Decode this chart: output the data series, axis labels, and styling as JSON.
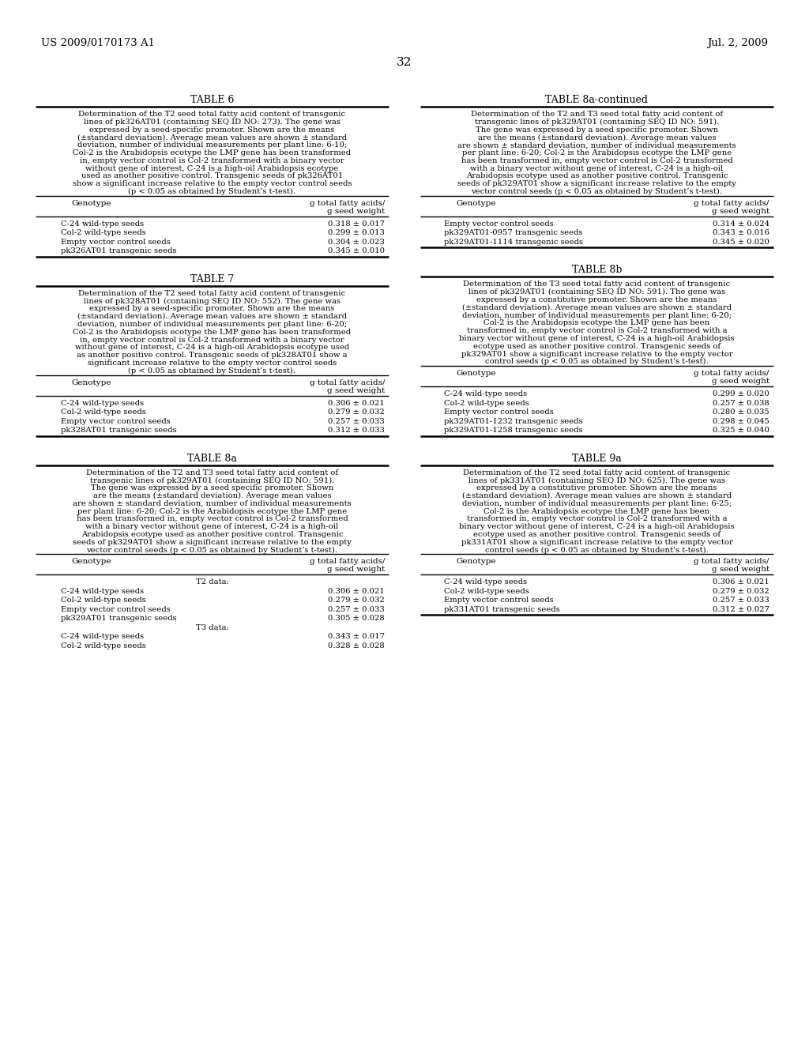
{
  "page_header_left": "US 2009/0170173 A1",
  "page_header_right": "Jul. 2, 2009",
  "page_number": "32",
  "bg_color": "#ffffff",
  "text_color": "#000000",
  "tables": [
    {
      "title": "TABLE 6",
      "col": "left",
      "description": "Determination of the T2 seed total fatty acid content of transgenic\nlines of pk326AT01 (containing SEQ ID NO: 273). The gene was\nexpressed by a seed-specific promoter. Shown are the means\n(±standard deviation). Average mean values are shown ± standard\ndeviation, number of individual measurements per plant line: 6-10;\nCol-2 is the Arabidopsis ecotype the LMP gene has been transformed\nin, empty vector control is Col-2 transformed with a binary vector\nwithout gene of interest, C-24 is a high-oil Arabidopsis ecotype\nused as another positive control. Transgenic seeds of pk326AT01\nshow a significant increase relative to the empty vector control seeds\n(p < 0.05 as obtained by Student’s t-test).",
      "col_headers": [
        "Genotype",
        "g total fatty acids/\ng seed weight"
      ],
      "rows": [
        [
          "C-24 wild-type seeds",
          "0.318 ± 0.017"
        ],
        [
          "Col-2 wild-type seeds",
          "0.299 ± 0.013"
        ],
        [
          "Empty vector control seeds",
          "0.304 ± 0.023"
        ],
        [
          "pk326AT01 transgenic seeds",
          "0.345 ± 0.010"
        ]
      ]
    },
    {
      "title": "TABLE 7",
      "col": "left",
      "description": "Determination of the T2 seed total fatty acid content of transgenic\nlines of pk328AT01 (containing SEQ ID NO: 552). The gene was\nexpressed by a seed-specific promoter. Shown are the means\n(±standard deviation). Average mean values are shown ± standard\ndeviation, number of individual measurements per plant line: 6-20;\nCol-2 is the Arabidopsis ecotype the LMP gene has been transformed\nin, empty vector control is Col-2 transformed with a binary vector\nwithout gene of interest, C-24 is a high-oil Arabidopsis ecotype used\nas another positive control. Transgenic seeds of pk328AT01 show a\nsignificant increase relative to the empty vector control seeds\n(p < 0.05 as obtained by Student’s t-test).",
      "col_headers": [
        "Genotype",
        "g total fatty acids/\ng seed weight"
      ],
      "rows": [
        [
          "C-24 wild-type seeds",
          "0.306 ± 0.021"
        ],
        [
          "Col-2 wild-type seeds",
          "0.279 ± 0.032"
        ],
        [
          "Empty vector control seeds",
          "0.257 ± 0.033"
        ],
        [
          "pk328AT01 transgenic seeds",
          "0.312 ± 0.033"
        ]
      ]
    },
    {
      "title": "TABLE 8a",
      "col": "left",
      "description": "Determination of the T2 and T3 seed total fatty acid content of\ntransgenic lines of pk329AT01 (containing SEQ ID NO: 591).\nThe gene was expressed by a seed specific promoter. Shown\nare the means (±standard deviation). Average mean values\nare shown ± standard deviation, number of individual measurements\nper plant line: 6-20; Col-2 is the Arabidopsis ecotype the LMP gene\nhas been transformed in, empty vector control is Col-2 transformed\nwith a binary vector without gene of interest, C-24 is a high-oil\nArabidopsis ecotype used as another positive control. Transgenic\nseeds of pk329AT01 show a significant increase relative to the empty\nvector control seeds (p < 0.05 as obtained by Student’s t-test).",
      "col_headers": [
        "Genotype",
        "g total fatty acids/\ng seed weight"
      ],
      "subsections": [
        {
          "label": "T2 data:",
          "rows": [
            [
              "C-24 wild-type seeds",
              "0.306 ± 0.021"
            ],
            [
              "Col-2 wild-type seeds",
              "0.279 ± 0.032"
            ],
            [
              "Empty vector control seeds",
              "0.257 ± 0.033"
            ],
            [
              "pk329AT01 transgenic seeds",
              "0.305 ± 0.028"
            ]
          ]
        },
        {
          "label": "T3 data:",
          "rows": [
            [
              "C-24 wild-type seeds",
              "0.343 ± 0.017"
            ],
            [
              "Col-2 wild-type seeds",
              "0.328 ± 0.028"
            ]
          ]
        }
      ]
    },
    {
      "title": "TABLE 8a-continued",
      "col": "right",
      "description": "Determination of the T2 and T3 seed total fatty acid content of\ntransgenic lines of pk329AT01 (containing SEQ ID NO: 591).\nThe gene was expressed by a seed specific promoter. Shown\nare the means (±standard deviation). Average mean values\nare shown ± standard deviation, number of individual measurements\nper plant line: 6-20; Col-2 is the Arabidopsis ecotype the LMP gene\nhas been transformed in, empty vector control is Col-2 transformed\nwith a binary vector without gene of interest, C-24 is a high-oil\nArabidopsis ecotype used as another positive control. Transgenic\nseeds of pk329AT01 show a significant increase relative to the empty\nvector control seeds (p < 0.05 as obtained by Student’s t-test).",
      "col_headers": [
        "Genotype",
        "g total fatty acids/\ng seed weight"
      ],
      "rows": [
        [
          "Empty vector control seeds",
          "0.314 ± 0.024"
        ],
        [
          "pk329AT01-0957 transgenic seeds",
          "0.343 ± 0.016"
        ],
        [
          "pk329AT01-1114 transgenic seeds",
          "0.345 ± 0.020"
        ]
      ]
    },
    {
      "title": "TABLE 8b",
      "col": "right",
      "description": "Determination of the T3 seed total fatty acid content of transgenic\nlines of pk329AT01 (containing SEQ ID NO: 591). The gene was\nexpressed by a constitutive promoter. Shown are the means\n(±standard deviation). Average mean values are shown ± standard\ndeviation, number of individual measurements per plant line: 6-20;\nCol-2 is the Arabidopsis ecotype the LMP gene has been\ntransformed in, empty vector control is Col-2 transformed with a\nbinary vector without gene of interest, C-24 is a high-oil Arabidopsis\necotype used as another positive control. Transgenic seeds of\npk329AT01 show a significant increase relative to the empty vector\ncontrol seeds (p < 0.05 as obtained by Student’s t-test).",
      "col_headers": [
        "Genotype",
        "g total fatty acids/\ng seed weight"
      ],
      "rows": [
        [
          "C-24 wild-type seeds",
          "0.299 ± 0.020"
        ],
        [
          "Col-2 wild-type seeds",
          "0.257 ± 0.038"
        ],
        [
          "Empty vector control seeds",
          "0.280 ± 0.035"
        ],
        [
          "pk329AT01-1232 transgenic seeds",
          "0.298 ± 0.045"
        ],
        [
          "pk329AT01-1258 transgenic seeds",
          "0.325 ± 0.040"
        ]
      ]
    },
    {
      "title": "TABLE 9a",
      "col": "right",
      "description": "Determination of the T2 seed total fatty acid content of transgenic\nlines of pk331AT01 (containing SEQ ID NO: 625). The gene was\nexpressed by a constitutive promoter. Shown are the means\n(±standard deviation). Average mean values are shown ± standard\ndeviation, number of individual measurements per plant line: 6-25;\nCol-2 is the Arabidopsis ecotype the LMP gene has been\ntransformed in, empty vector control is Col-2 transformed with a\nbinary vector without gene of interest, C-24 is a high-oil Arabidopsis\necotype used as another positive control. Transgenic seeds of\npk331AT01 show a significant increase relative to the empty vector\ncontrol seeds (p < 0.05 as obtained by Student’s t-test).",
      "col_headers": [
        "Genotype",
        "g total fatty acids/\ng seed weight"
      ],
      "rows": [
        [
          "C-24 wild-type seeds",
          "0.306 ± 0.021"
        ],
        [
          "Col-2 wild-type seeds",
          "0.279 ± 0.032"
        ],
        [
          "Empty vector control seeds",
          "0.257 ± 0.033"
        ],
        [
          "pk331AT01 transgenic seeds",
          "0.312 ± 0.027"
        ]
      ]
    }
  ]
}
